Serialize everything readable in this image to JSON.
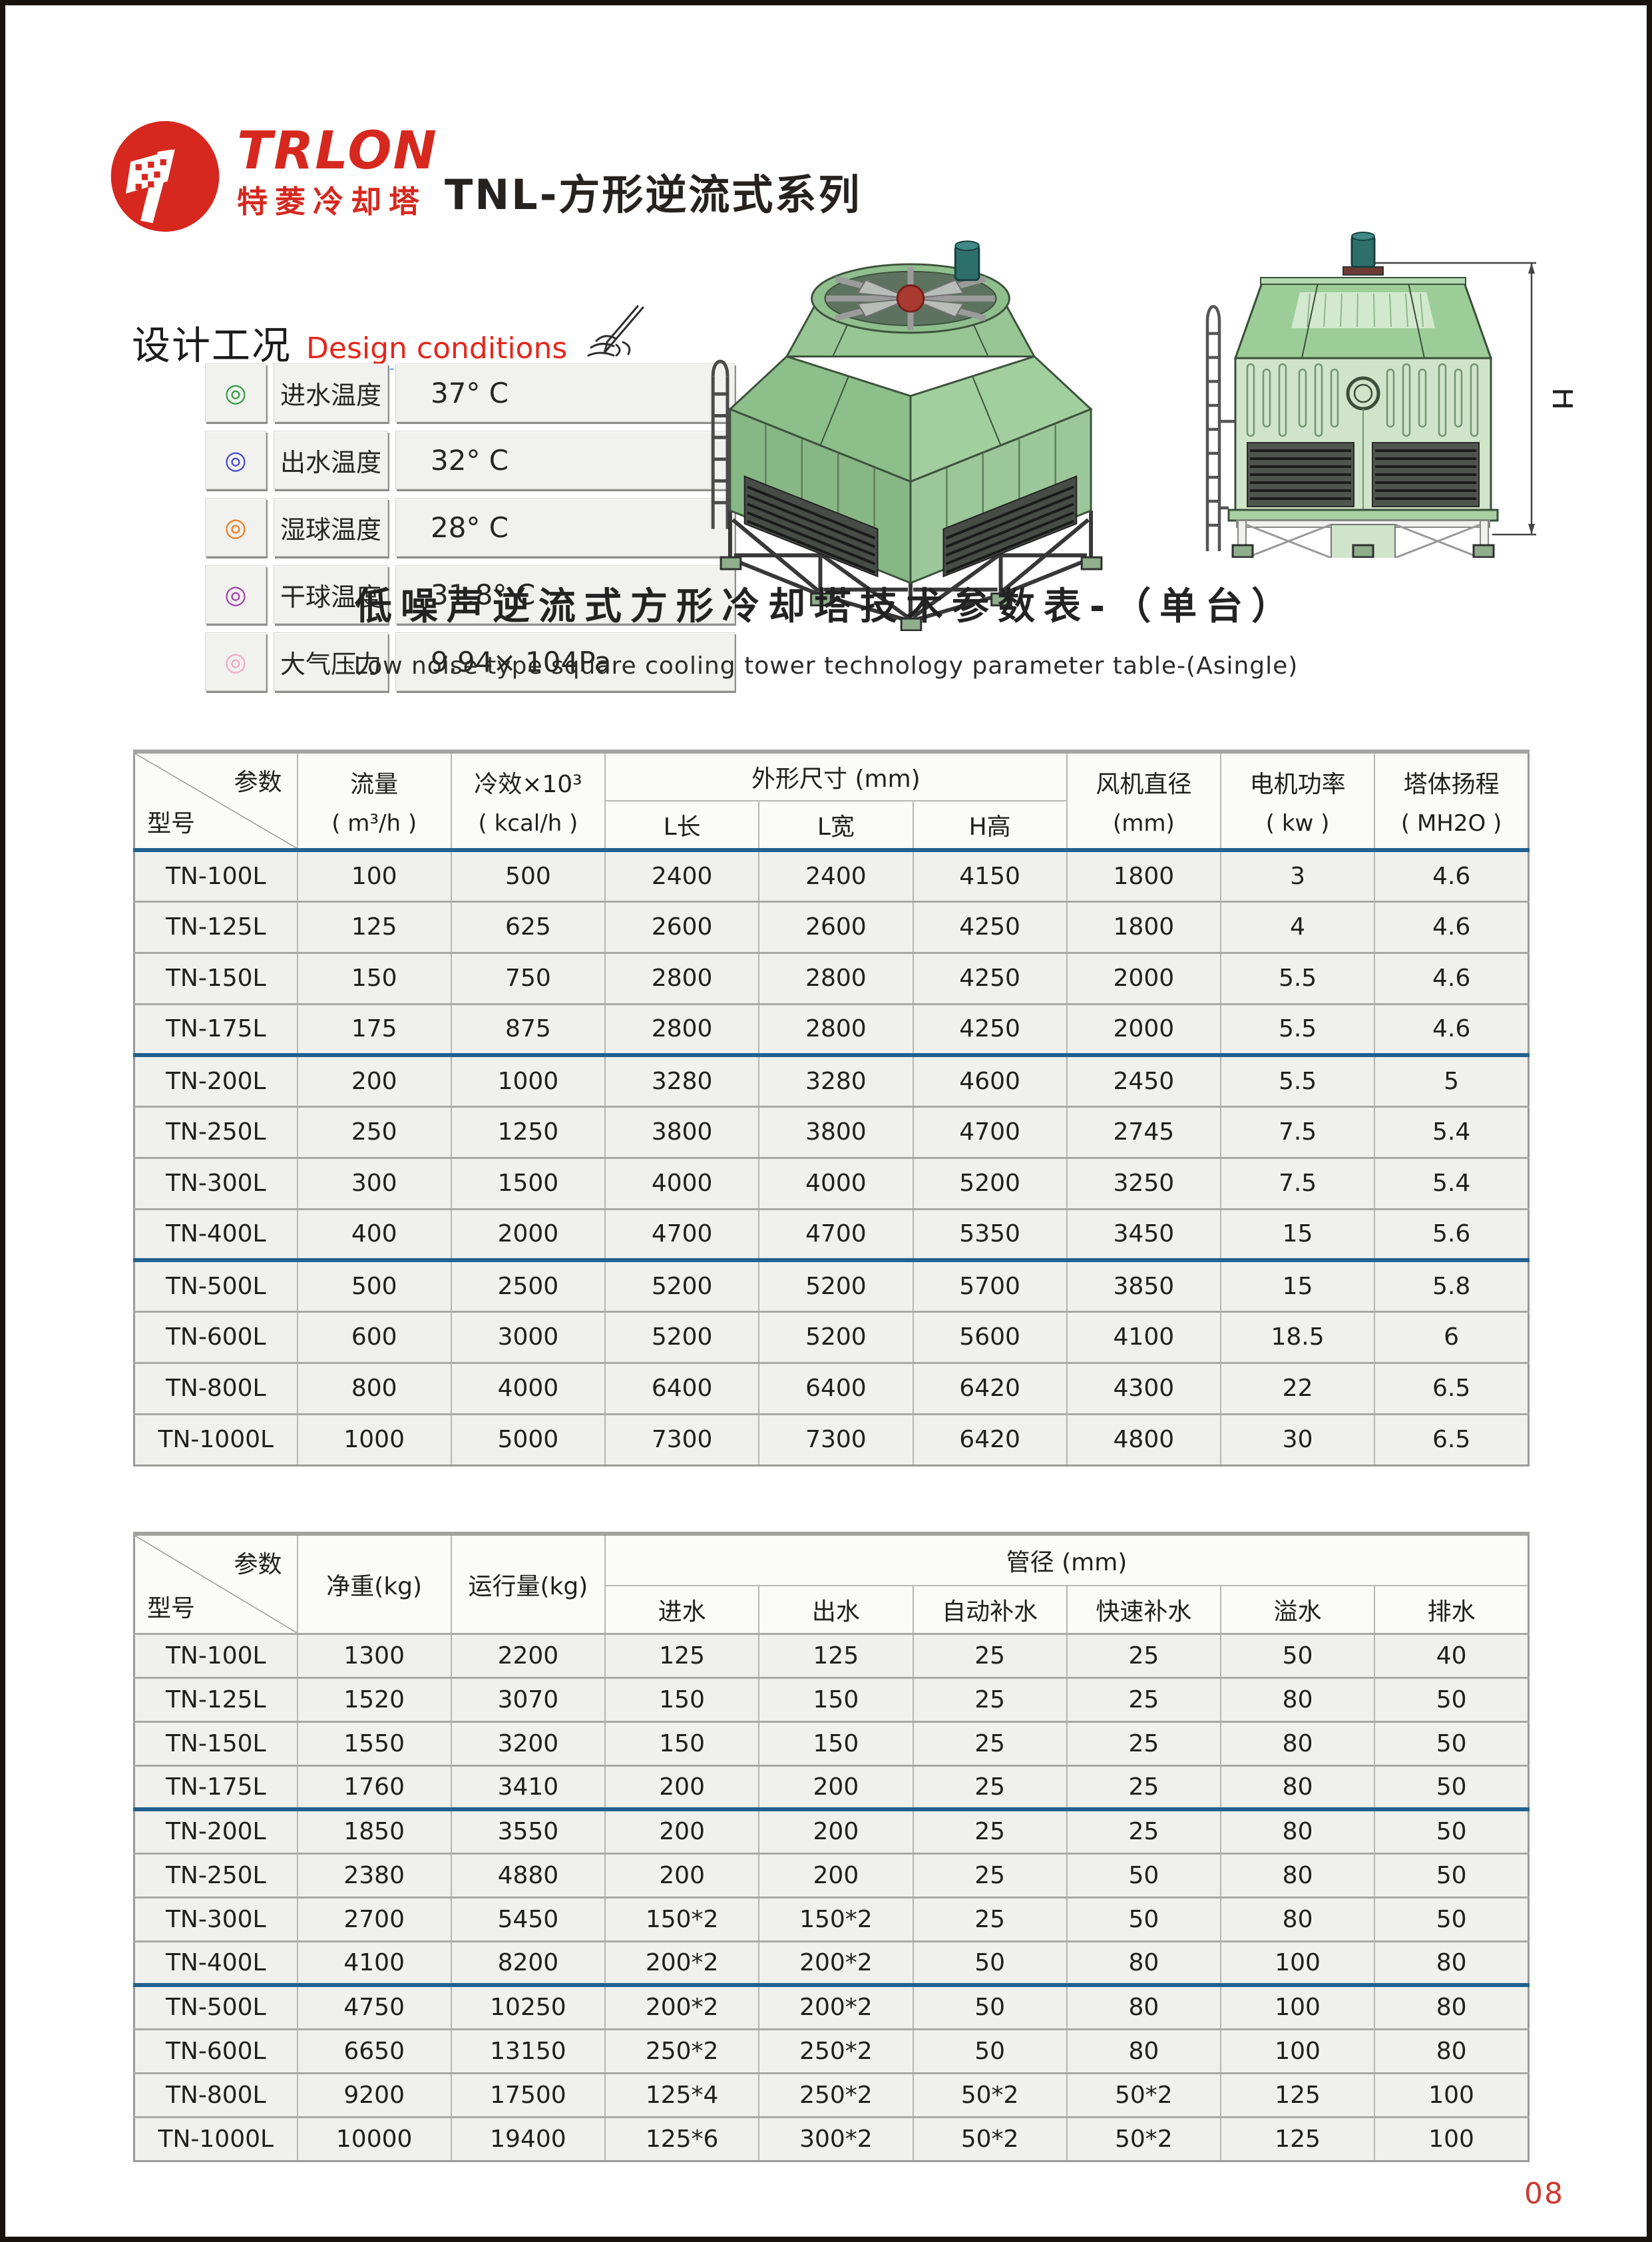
{
  "page": {
    "number": "08"
  },
  "header": {
    "brand": "TRLON",
    "brand_cn": "特菱冷却塔",
    "series_title": "TNL-方形逆流式系列"
  },
  "design_conditions": {
    "title_cn": "设计工况",
    "title_en": "Design conditions",
    "rows": [
      {
        "icon": "bullseye-green",
        "color": "#2f9e3f",
        "label": "进水温度",
        "value": "37° C"
      },
      {
        "icon": "bullseye-blue",
        "color": "#4348cc",
        "label": "出水温度",
        "value": "32° C"
      },
      {
        "icon": "bullseye-orange",
        "color": "#f07d1e",
        "label": "湿球温度",
        "value": "28° C"
      },
      {
        "icon": "bullseye-purple",
        "color": "#a13fae",
        "label": "干球温度",
        "value": "31.8° C"
      },
      {
        "icon": "bullseye-pink",
        "color": "#f5a8c8",
        "label": "大气压力",
        "value": "9.94× 104Pa"
      }
    ]
  },
  "section_title": {
    "cn": "低噪声逆流式方形冷却塔技术参数表-（单台）",
    "en": "Low noise  type square cooling tower technology parameter table-(Asingle)"
  },
  "illustrations": {
    "dimension_label": "H"
  },
  "tables": {
    "t1": {
      "corner_top": "参数",
      "corner_bottom": "型号",
      "col_flow_label": "流量",
      "col_flow_unit": "( m³/h )",
      "col_cool_label": "冷效×10³",
      "col_cool_unit": "( kcal/h )",
      "dim_group": "外形尺寸 (mm)",
      "dim_l": "L长",
      "dim_w": "L宽",
      "dim_h": "H高",
      "col_fan_label": "风机直径",
      "col_fan_unit": "(mm)",
      "col_motor_label": "电机功率",
      "col_motor_unit": "( kw )",
      "col_lift_label": "塔体扬程",
      "col_lift_unit": "( MH2O )",
      "rows": [
        [
          "TN-100L",
          "100",
          "500",
          "2400",
          "2400",
          "4150",
          "1800",
          "3",
          "4.6"
        ],
        [
          "TN-125L",
          "125",
          "625",
          "2600",
          "2600",
          "4250",
          "1800",
          "4",
          "4.6"
        ],
        [
          "TN-150L",
          "150",
          "750",
          "2800",
          "2800",
          "4250",
          "2000",
          "5.5",
          "4.6"
        ],
        [
          "TN-175L",
          "175",
          "875",
          "2800",
          "2800",
          "4250",
          "2000",
          "5.5",
          "4.6"
        ],
        [
          "TN-200L",
          "200",
          "1000",
          "3280",
          "3280",
          "4600",
          "2450",
          "5.5",
          "5"
        ],
        [
          "TN-250L",
          "250",
          "1250",
          "3800",
          "3800",
          "4700",
          "2745",
          "7.5",
          "5.4"
        ],
        [
          "TN-300L",
          "300",
          "1500",
          "4000",
          "4000",
          "5200",
          "3250",
          "7.5",
          "5.4"
        ],
        [
          "TN-400L",
          "400",
          "2000",
          "4700",
          "4700",
          "5350",
          "3450",
          "15",
          "5.6"
        ],
        [
          "TN-500L",
          "500",
          "2500",
          "5200",
          "5200",
          "5700",
          "3850",
          "15",
          "5.8"
        ],
        [
          "TN-600L",
          "600",
          "3000",
          "5200",
          "5200",
          "5600",
          "4100",
          "18.5",
          "6"
        ],
        [
          "TN-800L",
          "800",
          "4000",
          "6400",
          "6400",
          "6420",
          "4300",
          "22",
          "6.5"
        ],
        [
          "TN-1000L",
          "1000",
          "5000",
          "7300",
          "7300",
          "6420",
          "4800",
          "30",
          "6.5"
        ]
      ]
    },
    "t2": {
      "corner_top": "参数",
      "corner_bottom": "型号",
      "col_net": "净重(kg)",
      "col_run": "运行量(kg)",
      "pipe_group": "管径 (mm)",
      "subs": [
        "进水",
        "出水",
        "自动补水",
        "快速补水",
        "溢水",
        "排水"
      ],
      "rows": [
        [
          "TN-100L",
          "1300",
          "2200",
          "125",
          "125",
          "25",
          "25",
          "50",
          "40"
        ],
        [
          "TN-125L",
          "1520",
          "3070",
          "150",
          "150",
          "25",
          "25",
          "80",
          "50"
        ],
        [
          "TN-150L",
          "1550",
          "3200",
          "150",
          "150",
          "25",
          "25",
          "80",
          "50"
        ],
        [
          "TN-175L",
          "1760",
          "3410",
          "200",
          "200",
          "25",
          "25",
          "80",
          "50"
        ],
        [
          "TN-200L",
          "1850",
          "3550",
          "200",
          "200",
          "25",
          "25",
          "80",
          "50"
        ],
        [
          "TN-250L",
          "2380",
          "4880",
          "200",
          "200",
          "25",
          "50",
          "80",
          "50"
        ],
        [
          "TN-300L",
          "2700",
          "5450",
          "150*2",
          "150*2",
          "25",
          "50",
          "80",
          "50"
        ],
        [
          "TN-400L",
          "4100",
          "8200",
          "200*2",
          "200*2",
          "50",
          "80",
          "100",
          "80"
        ],
        [
          "TN-500L",
          "4750",
          "10250",
          "200*2",
          "200*2",
          "50",
          "80",
          "100",
          "80"
        ],
        [
          "TN-600L",
          "6650",
          "13150",
          "250*2",
          "250*2",
          "50",
          "80",
          "100",
          "80"
        ],
        [
          "TN-800L",
          "9200",
          "17500",
          "125*4",
          "250*2",
          "50*2",
          "50*2",
          "125",
          "100"
        ],
        [
          "TN-1000L",
          "10000",
          "19400",
          "125*6",
          "300*2",
          "50*2",
          "50*2",
          "125",
          "100"
        ]
      ]
    }
  }
}
